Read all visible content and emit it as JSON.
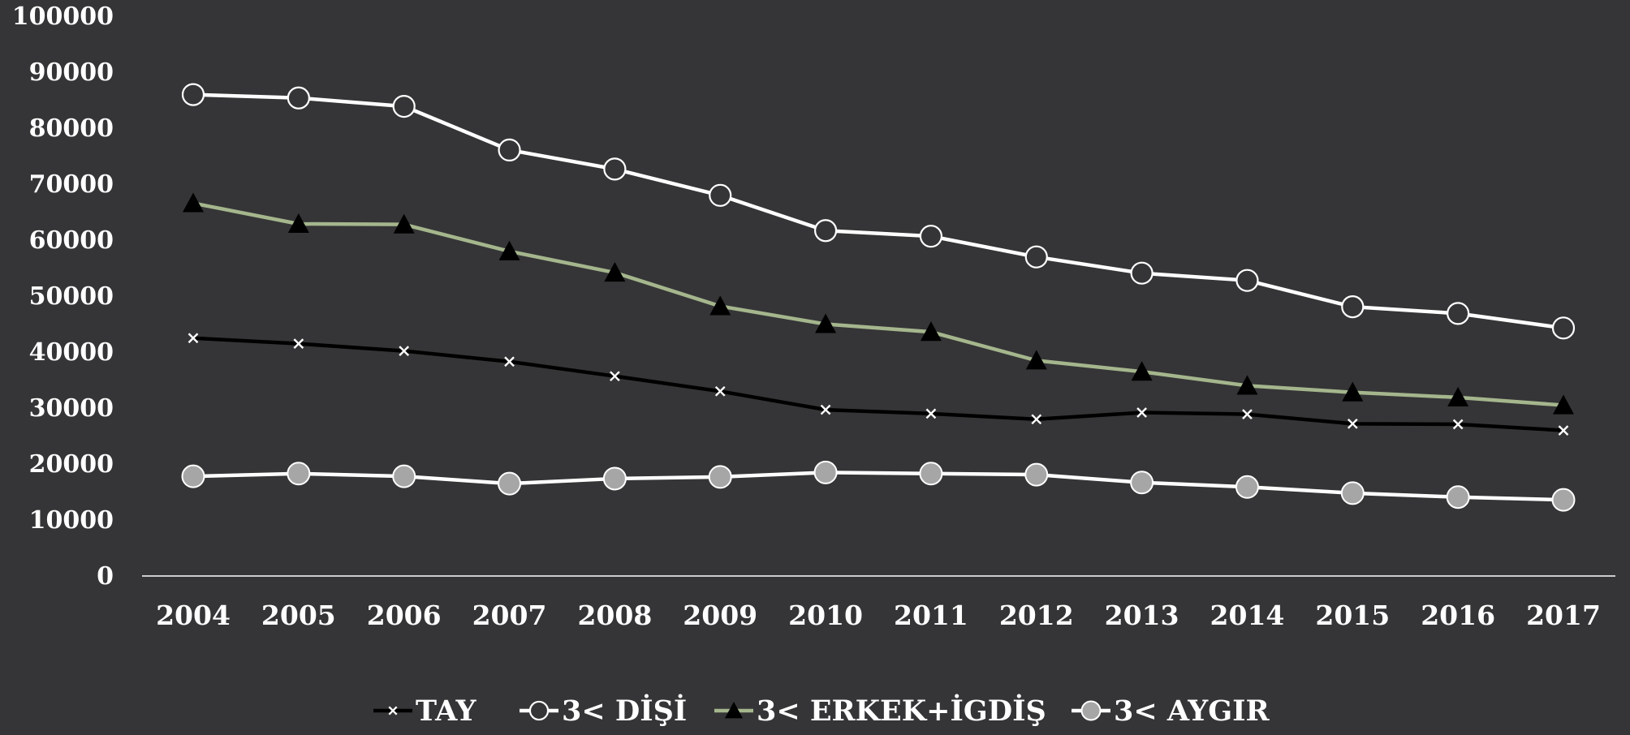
{
  "chart_data": {
    "type": "line",
    "title": "",
    "xlabel": "",
    "ylabel": "",
    "categories": [
      "2004",
      "2005",
      "2006",
      "2007",
      "2008",
      "2009",
      "2010",
      "2011",
      "2012",
      "2013",
      "2014",
      "2015",
      "2016",
      "2017"
    ],
    "ylim": [
      0,
      100000
    ],
    "yticks": [
      0,
      10000,
      20000,
      30000,
      40000,
      50000,
      60000,
      70000,
      80000,
      90000,
      100000
    ],
    "grid": false,
    "legend_position": "bottom",
    "series": [
      {
        "name": "TAY",
        "marker": "x",
        "line_color": "#000000",
        "marker_color": "#ffffff",
        "values": [
          42500,
          41500,
          40200,
          38300,
          35700,
          33000,
          29700,
          29000,
          28000,
          29200,
          28900,
          27200,
          27100,
          26000
        ]
      },
      {
        "name": "3< DİŞİ",
        "marker": "circle-open",
        "line_color": "#ffffff",
        "marker_color": "#ffffff",
        "values": [
          86000,
          85400,
          83900,
          76100,
          72700,
          68000,
          61700,
          60700,
          57000,
          54100,
          52800,
          48100,
          46900,
          44300
        ]
      },
      {
        "name": "3< ERKEK+İGDİŞ",
        "marker": "triangle",
        "line_color": "#a5b68d",
        "marker_color": "#000000",
        "values": [
          66600,
          62900,
          62800,
          58000,
          54200,
          48200,
          45000,
          43600,
          38500,
          36500,
          34000,
          32800,
          31900,
          30500
        ]
      },
      {
        "name": "3< AYGIR",
        "marker": "circle-filled",
        "line_color": "#ffffff",
        "marker_color": "#a6a6a6",
        "values": [
          17800,
          18300,
          17800,
          16500,
          17400,
          17700,
          18500,
          18300,
          18100,
          16700,
          15900,
          14800,
          14100,
          13600
        ]
      }
    ]
  }
}
